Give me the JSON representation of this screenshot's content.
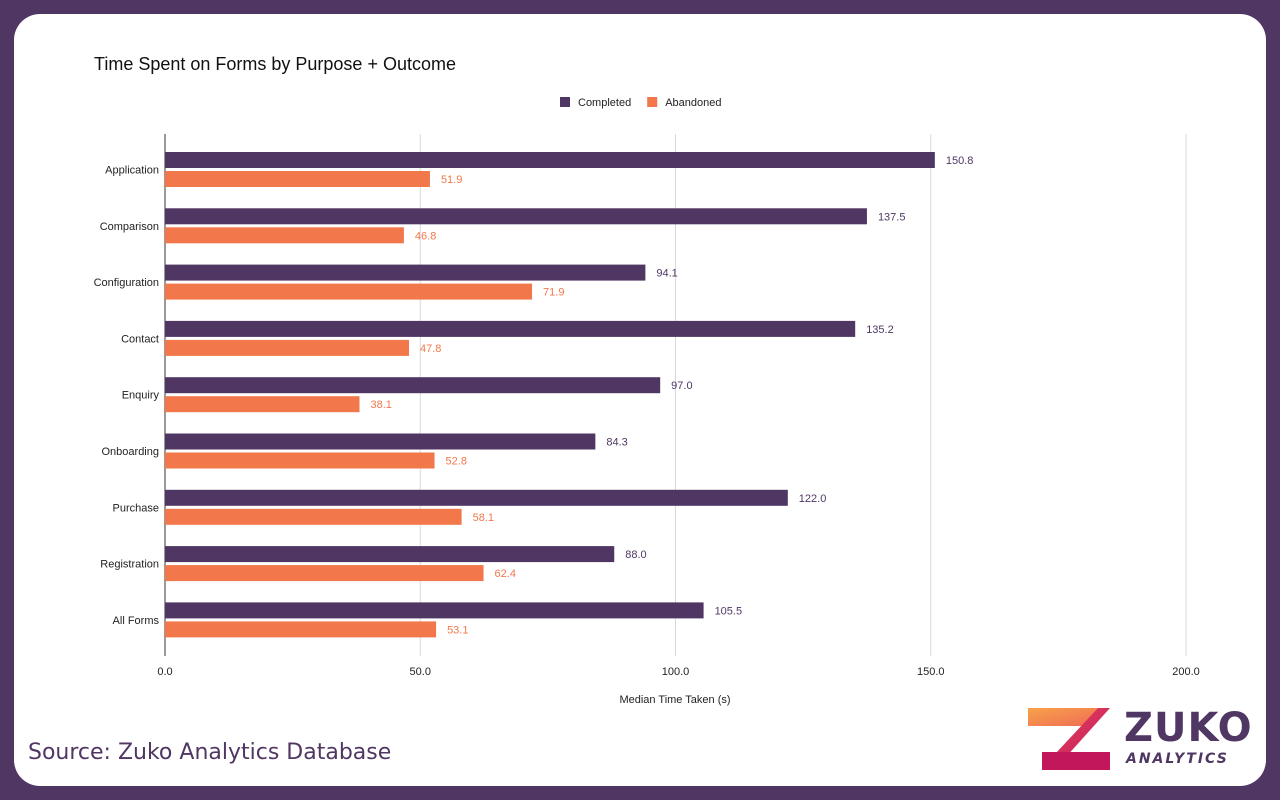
{
  "chart_data": {
    "type": "bar",
    "orientation": "horizontal",
    "title": "Time Spent on Forms by Purpose + Outcome",
    "xlabel": "Median Time Taken (s)",
    "ylabel": "",
    "xlim": [
      0,
      200
    ],
    "x_ticks": [
      "0.0",
      "50.0",
      "100.0",
      "150.0",
      "200.0"
    ],
    "grid": true,
    "legend_position": "top-center",
    "categories": [
      "Application",
      "Comparison",
      "Configuration",
      "Contact",
      "Enquiry",
      "Onboarding",
      "Purchase",
      "Registration",
      "All Forms"
    ],
    "series": [
      {
        "name": "Completed",
        "color": "#4f3663",
        "values": [
          150.8,
          137.5,
          94.1,
          135.2,
          97.0,
          84.3,
          122.0,
          88.0,
          105.5
        ],
        "labels": [
          "150.8",
          "137.5",
          "94.1",
          "135.2",
          "97.0",
          "84.3",
          "122.0",
          "88.0",
          "105.5"
        ]
      },
      {
        "name": "Abandoned",
        "color": "#f2784b",
        "values": [
          51.9,
          46.8,
          71.9,
          47.8,
          38.1,
          52.8,
          58.1,
          62.4,
          53.1
        ],
        "labels": [
          "51.9",
          "46.8",
          "71.9",
          "47.8",
          "38.1",
          "52.8",
          "58.1",
          "62.4",
          "53.1"
        ]
      }
    ]
  },
  "footer": {
    "source": "Source: Zuko Analytics Database"
  },
  "logo": {
    "word": "ZUKO",
    "sub": "ANALYTICS"
  }
}
